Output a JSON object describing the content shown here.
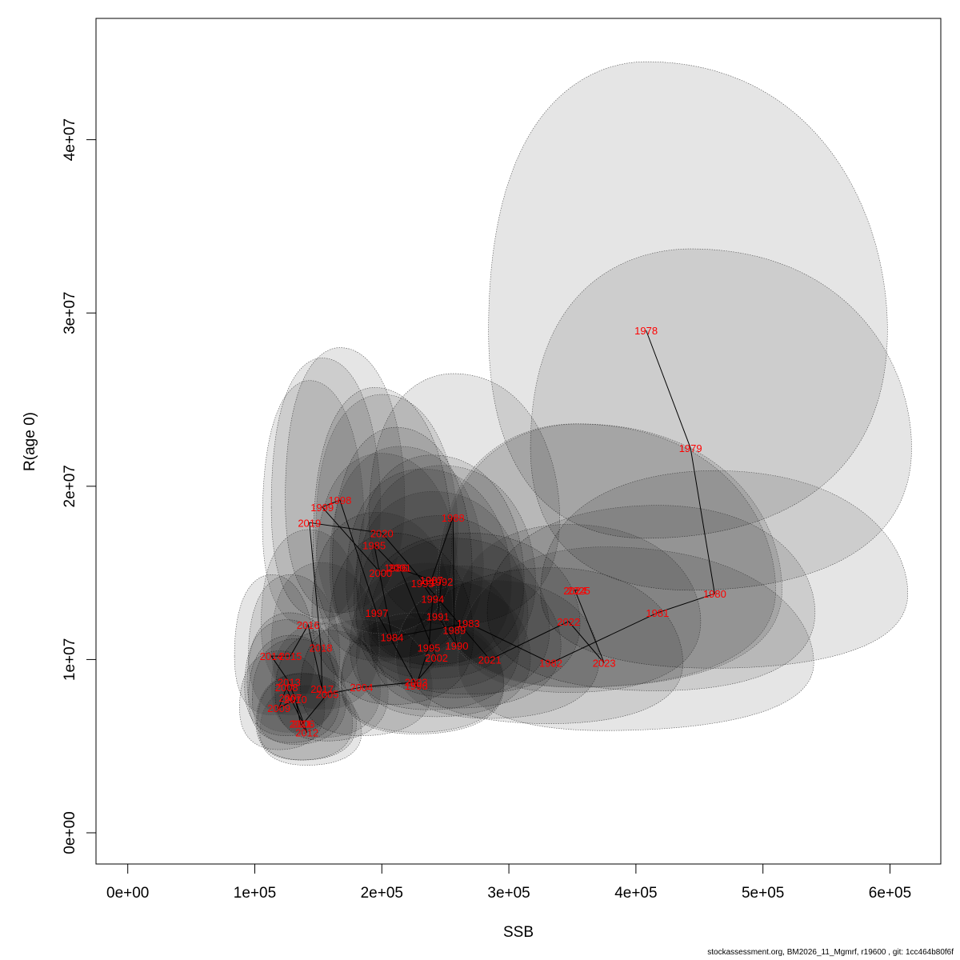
{
  "chart_data": {
    "type": "scatter",
    "xlabel": "SSB",
    "ylabel": "R(age 0)",
    "xlim": [
      -25000,
      640000
    ],
    "ylim": [
      -1800000,
      47000000
    ],
    "x_ticks": [
      0,
      100000,
      200000,
      300000,
      400000,
      500000,
      600000
    ],
    "x_tick_labels": [
      "0e+00",
      "1e+05",
      "2e+05",
      "3e+05",
      "4e+05",
      "5e+05",
      "6e+05"
    ],
    "y_ticks": [
      0,
      10000000,
      20000000,
      30000000,
      40000000
    ],
    "y_tick_labels": [
      "0e+00",
      "1e+07",
      "2e+07",
      "3e+07",
      "4e+07"
    ],
    "colors": {
      "label": "#ff0000",
      "ellipse_fill": "#000000",
      "ellipse_stroke": "#555555",
      "path": "#000000"
    },
    "points": [
      {
        "year": "1978",
        "ssb": 408000,
        "r": 29000000,
        "ssb_lo": 284000,
        "ssb_hi": 598000,
        "r_lo": 17000000,
        "r_hi": 44500000
      },
      {
        "year": "1979",
        "ssb": 443000,
        "r": 22200000,
        "ssb_lo": 317000,
        "ssb_hi": 617000,
        "r_lo": 14000000,
        "r_hi": 33700000
      },
      {
        "year": "1980",
        "ssb": 462000,
        "r": 13800000,
        "ssb_lo": 325000,
        "ssb_hi": 614000,
        "r_lo": 9500000,
        "r_hi": 20900000
      },
      {
        "year": "1981",
        "ssb": 417000,
        "r": 12700000,
        "ssb_lo": 283000,
        "ssb_hi": 541000,
        "r_lo": 8200000,
        "r_hi": 18900000
      },
      {
        "year": "1982",
        "ssb": 333000,
        "r": 9800000,
        "ssb_lo": 222000,
        "ssb_hi": 437000,
        "r_lo": 6300000,
        "r_hi": 15300000
      },
      {
        "year": "1983",
        "ssb": 268000,
        "r": 12100000,
        "ssb_lo": 185000,
        "ssb_hi": 356000,
        "r_lo": 8000000,
        "r_hi": 17300000
      },
      {
        "year": "1984",
        "ssb": 208000,
        "r": 11300000,
        "ssb_lo": 158000,
        "ssb_hi": 272000,
        "r_lo": 7400000,
        "r_hi": 17300000
      },
      {
        "year": "1985",
        "ssb": 194000,
        "r": 16600000,
        "ssb_lo": 146000,
        "ssb_hi": 255000,
        "r_lo": 10800000,
        "r_hi": 25700000
      },
      {
        "year": "1986",
        "ssb": 211000,
        "r": 15300000,
        "ssb_lo": 161000,
        "ssb_hi": 271000,
        "r_lo": 10100000,
        "r_hi": 23400000
      },
      {
        "year": "1987",
        "ssb": 239000,
        "r": 14600000,
        "ssb_lo": 180000,
        "ssb_hi": 312000,
        "r_lo": 9700000,
        "r_hi": 21800000
      },
      {
        "year": "1988",
        "ssb": 256000,
        "r": 18200000,
        "ssb_lo": 190000,
        "ssb_hi": 340000,
        "r_lo": 12000000,
        "r_hi": 26500000
      },
      {
        "year": "1989",
        "ssb": 257000,
        "r": 11700000,
        "ssb_lo": 190000,
        "ssb_hi": 332000,
        "r_lo": 7800000,
        "r_hi": 17000000
      },
      {
        "year": "1990",
        "ssb": 259000,
        "r": 10800000,
        "ssb_lo": 192000,
        "ssb_hi": 341000,
        "r_lo": 7200000,
        "r_hi": 15400000
      },
      {
        "year": "1991",
        "ssb": 244000,
        "r": 12500000,
        "ssb_lo": 180000,
        "ssb_hi": 315000,
        "r_lo": 8300000,
        "r_hi": 18300000
      },
      {
        "year": "1992",
        "ssb": 247000,
        "r": 14500000,
        "ssb_lo": 183000,
        "ssb_hi": 321000,
        "r_lo": 9600000,
        "r_hi": 21200000
      },
      {
        "year": "1993",
        "ssb": 232000,
        "r": 14400000,
        "ssb_lo": 172000,
        "ssb_hi": 302000,
        "r_lo": 9500000,
        "r_hi": 21000000
      },
      {
        "year": "1994",
        "ssb": 240000,
        "r": 13500000,
        "ssb_lo": 178000,
        "ssb_hi": 312000,
        "r_lo": 8900000,
        "r_hi": 19700000
      },
      {
        "year": "1995",
        "ssb": 237000,
        "r": 10700000,
        "ssb_lo": 175000,
        "ssb_hi": 308000,
        "r_lo": 7100000,
        "r_hi": 15600000
      },
      {
        "year": "1996",
        "ssb": 227000,
        "r": 8500000,
        "ssb_lo": 168000,
        "ssb_hi": 296000,
        "r_lo": 5700000,
        "r_hi": 12400000
      },
      {
        "year": "1997",
        "ssb": 196000,
        "r": 12700000,
        "ssb_lo": 145000,
        "ssb_hi": 256000,
        "r_lo": 8400000,
        "r_hi": 18500000
      },
      {
        "year": "1998",
        "ssb": 167000,
        "r": 19200000,
        "ssb_lo": 124000,
        "ssb_hi": 218000,
        "r_lo": 12700000,
        "r_hi": 28000000
      },
      {
        "year": "1999",
        "ssb": 153000,
        "r": 18800000,
        "ssb_lo": 113000,
        "ssb_hi": 199000,
        "r_lo": 12400000,
        "r_hi": 27400000
      },
      {
        "year": "2000",
        "ssb": 199000,
        "r": 15000000,
        "ssb_lo": 148000,
        "ssb_hi": 260000,
        "r_lo": 9900000,
        "r_hi": 21900000
      },
      {
        "year": "2001",
        "ssb": 214000,
        "r": 15300000,
        "ssb_lo": 159000,
        "ssb_hi": 280000,
        "r_lo": 10100000,
        "r_hi": 22300000
      },
      {
        "year": "2002",
        "ssb": 243000,
        "r": 10100000,
        "ssb_lo": 180000,
        "ssb_hi": 317000,
        "r_lo": 6700000,
        "r_hi": 14700000
      },
      {
        "year": "2003",
        "ssb": 227000,
        "r": 8700000,
        "ssb_lo": 168000,
        "ssb_hi": 296000,
        "r_lo": 5800000,
        "r_hi": 12700000
      },
      {
        "year": "2004",
        "ssb": 184000,
        "r": 8400000,
        "ssb_lo": 136000,
        "ssb_hi": 240000,
        "r_lo": 5600000,
        "r_hi": 12300000
      },
      {
        "year": "2005",
        "ssb": 157000,
        "r": 8000000,
        "ssb_lo": 116000,
        "ssb_hi": 205000,
        "r_lo": 5300000,
        "r_hi": 11700000
      },
      {
        "year": "2006",
        "ssb": 138000,
        "r": 6300000,
        "ssb_lo": 102000,
        "ssb_hi": 180000,
        "r_lo": 4200000,
        "r_hi": 9200000
      },
      {
        "year": "2007",
        "ssb": 128000,
        "r": 7800000,
        "ssb_lo": 95000,
        "ssb_hi": 167000,
        "r_lo": 5200000,
        "r_hi": 11400000
      },
      {
        "year": "2008",
        "ssb": 125000,
        "r": 8400000,
        "ssb_lo": 92000,
        "ssb_hi": 163000,
        "r_lo": 5600000,
        "r_hi": 12300000
      },
      {
        "year": "2009",
        "ssb": 119000,
        "r": 7200000,
        "ssb_lo": 88000,
        "ssb_hi": 155000,
        "r_lo": 4800000,
        "r_hi": 10500000
      },
      {
        "year": "2010",
        "ssb": 132000,
        "r": 7700000,
        "ssb_lo": 98000,
        "ssb_hi": 172000,
        "r_lo": 5100000,
        "r_hi": 11200000
      },
      {
        "year": "2011",
        "ssb": 136000,
        "r": 6300000,
        "ssb_lo": 101000,
        "ssb_hi": 177000,
        "r_lo": 4200000,
        "r_hi": 9200000
      },
      {
        "year": "2012",
        "ssb": 141000,
        "r": 5800000,
        "ssb_lo": 104000,
        "ssb_hi": 184000,
        "r_lo": 3900000,
        "r_hi": 8500000
      },
      {
        "year": "2013",
        "ssb": 127000,
        "r": 8700000,
        "ssb_lo": 94000,
        "ssb_hi": 166000,
        "r_lo": 5800000,
        "r_hi": 12700000
      },
      {
        "year": "2014",
        "ssb": 113000,
        "r": 10200000,
        "ssb_lo": 84000,
        "ssb_hi": 147000,
        "r_lo": 6800000,
        "r_hi": 14900000
      },
      {
        "year": "2015",
        "ssb": 128000,
        "r": 10200000,
        "ssb_lo": 95000,
        "ssb_hi": 167000,
        "r_lo": 6800000,
        "r_hi": 14900000
      },
      {
        "year": "2016",
        "ssb": 142000,
        "r": 12000000,
        "ssb_lo": 105000,
        "ssb_hi": 185000,
        "r_lo": 8000000,
        "r_hi": 17500000
      },
      {
        "year": "2017",
        "ssb": 153000,
        "r": 8300000,
        "ssb_lo": 113000,
        "ssb_hi": 199000,
        "r_lo": 5500000,
        "r_hi": 12100000
      },
      {
        "year": "2018",
        "ssb": 152000,
        "r": 10700000,
        "ssb_lo": 113000,
        "ssb_hi": 198000,
        "r_lo": 7100000,
        "r_hi": 15600000
      },
      {
        "year": "2019",
        "ssb": 143000,
        "r": 17900000,
        "ssb_lo": 106000,
        "ssb_hi": 186000,
        "r_lo": 11900000,
        "r_hi": 26100000
      },
      {
        "year": "2020",
        "ssb": 200000,
        "r": 17300000,
        "ssb_lo": 148000,
        "ssb_hi": 260000,
        "r_lo": 11500000,
        "r_hi": 25300000
      },
      {
        "year": "2021",
        "ssb": 285000,
        "r": 10000000,
        "ssb_lo": 211000,
        "ssb_hi": 371000,
        "r_lo": 6600000,
        "r_hi": 14600000
      },
      {
        "year": "2022",
        "ssb": 347000,
        "r": 12200000,
        "ssb_lo": 257000,
        "ssb_hi": 451000,
        "r_lo": 8100000,
        "r_hi": 17800000
      },
      {
        "year": "2023",
        "ssb": 375000,
        "r": 9800000,
        "ssb_lo": 260000,
        "ssb_hi": 540000,
        "r_lo": 5900000,
        "r_hi": 16500000
      },
      {
        "year": "2024",
        "ssb": 352000,
        "r": 14000000,
        "ssb_lo": 243000,
        "ssb_hi": 510000,
        "r_lo": 8400000,
        "r_hi": 23600000
      },
      {
        "year": "2025",
        "ssb": 355000,
        "r": 14000000,
        "ssb_lo": 245000,
        "ssb_hi": 515000,
        "r_lo": 8400000,
        "r_hi": 23600000
      }
    ]
  },
  "footer": {
    "text": "stockassessment.org, BM2026_11_Mgmrf, r19600 , git: 1cc464b80f6f"
  }
}
